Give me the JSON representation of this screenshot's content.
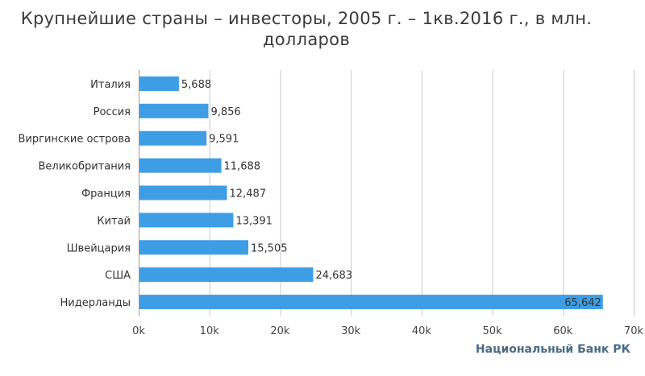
{
  "chart_data": {
    "type": "bar",
    "orientation": "horizontal",
    "title": "Крупнейшие страны – инвесторы, 2005 г. – 1кв.2016 г., в млн. долларов",
    "categories": [
      "Италия",
      "Россия",
      "Виргинские острова",
      "Великобритания",
      "Франция",
      "Китай",
      "Швейцария",
      "США",
      "Нидерланды"
    ],
    "values": [
      5688,
      9856,
      9591,
      11688,
      12487,
      13391,
      15505,
      24683,
      65642
    ],
    "value_labels": [
      "5,688",
      "9,856",
      "9,591",
      "11,688",
      "12,487",
      "13,391",
      "15,505",
      "24,683",
      "65,642"
    ],
    "xlim": [
      0,
      70000
    ],
    "x_ticks": [
      0,
      10000,
      20000,
      30000,
      40000,
      50000,
      60000,
      70000
    ],
    "x_tick_labels": [
      "0k",
      "10k",
      "20k",
      "30k",
      "40k",
      "50k",
      "60k",
      "70k"
    ],
    "grid": true,
    "bar_color": "#3d9ee6",
    "credit": "Национальный Банк РК"
  }
}
